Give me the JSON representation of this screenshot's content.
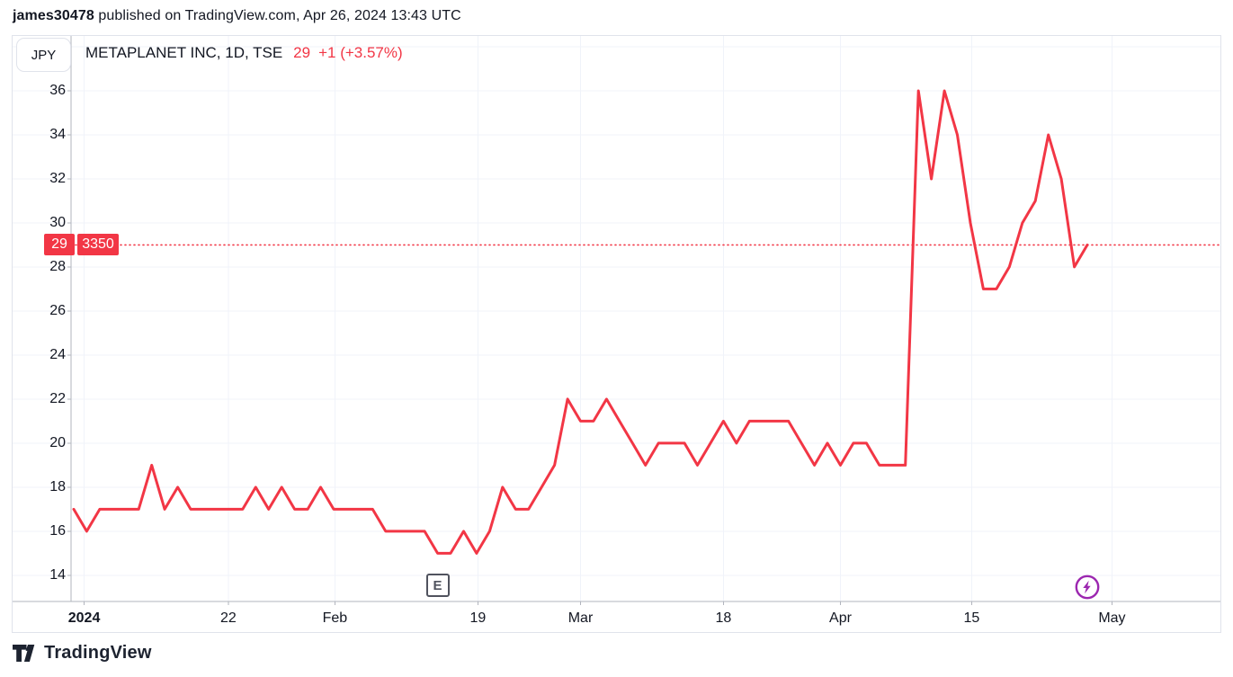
{
  "attribution": {
    "username": "james30478",
    "rest": " published on TradingView.com, Apr 26, 2024 13:43 UTC"
  },
  "toolbar": {
    "currency_label": "JPY"
  },
  "legend": {
    "symbol_info": "METAPLANET INC, 1D, TSE",
    "last_price": "29",
    "change": "+1 (+3.57%)"
  },
  "price_axis_tags": {
    "price": "29",
    "secondary": "3350"
  },
  "markers": {
    "earnings_label": "E",
    "boost_icon": "lightning-icon"
  },
  "footer": {
    "brand": "TradingView"
  },
  "colors": {
    "line_red": "#f23645",
    "text_dark": "#131722",
    "grid": "#f0f3fa",
    "axis": "#b2b5be",
    "frame": "#e0e3eb",
    "marker_gray": "#50535e",
    "boost_purple": "#9c27b0"
  },
  "chart_data": {
    "type": "line",
    "title": "METAPLANET INC, 1D, TSE",
    "series_name": "METAPLANET INC close price (JPY)",
    "values": [
      17,
      16,
      17,
      17,
      17,
      17,
      19,
      17,
      18,
      17,
      17,
      17,
      17,
      17,
      18,
      17,
      18,
      17,
      17,
      18,
      17,
      17,
      17,
      17,
      16,
      16,
      16,
      16,
      15,
      15,
      16,
      15,
      16,
      18,
      17,
      17,
      18,
      19,
      22,
      21,
      21,
      22,
      21,
      20,
      19,
      20,
      20,
      20,
      19,
      20,
      21,
      20,
      21,
      21,
      21,
      21,
      20,
      19,
      20,
      19,
      20,
      20,
      19,
      19,
      19,
      36,
      32,
      36,
      34,
      30,
      27,
      27,
      28,
      30,
      31,
      34,
      32,
      28,
      29
    ],
    "current_price": 29,
    "price_line_value": 29,
    "ylim": [
      12.81,
      38.49
    ],
    "y_ticks": [
      36,
      34,
      32,
      30,
      28,
      26,
      24,
      22,
      20,
      18,
      16,
      14
    ],
    "extra_y_gridlines": [
      38
    ],
    "x_ticks": [
      {
        "i": 0.8,
        "label": "2024",
        "bold": true
      },
      {
        "i": 11.9,
        "label": "22",
        "bold": false
      },
      {
        "i": 20.1,
        "label": "Feb",
        "bold": false
      },
      {
        "i": 31.1,
        "label": "19",
        "bold": false
      },
      {
        "i": 39.0,
        "label": "Mar",
        "bold": false
      },
      {
        "i": 50.0,
        "label": "18",
        "bold": false
      },
      {
        "i": 59.0,
        "label": "Apr",
        "bold": false
      },
      {
        "i": 69.1,
        "label": "15",
        "bold": false
      },
      {
        "i": 79.9,
        "label": "May",
        "bold": false
      }
    ],
    "earnings_marker_index": 28,
    "grid_on": true,
    "legend_position": "top-left"
  }
}
